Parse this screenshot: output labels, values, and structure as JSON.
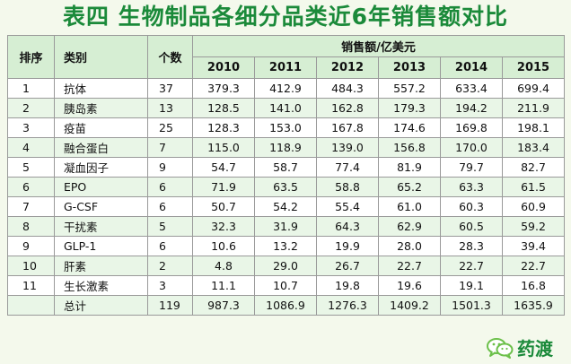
{
  "title": "表四 生物制品各细分品类近6年销售额对比",
  "headers": {
    "rank": "排序",
    "category": "类别",
    "count": "个数",
    "sales": "销售额/亿美元",
    "years": [
      "2010",
      "2011",
      "2012",
      "2013",
      "2014",
      "2015"
    ]
  },
  "rows": [
    {
      "rank": "1",
      "category": "抗体",
      "count": "37",
      "values": [
        "379.3",
        "412.9",
        "484.3",
        "557.2",
        "633.4",
        "699.4"
      ]
    },
    {
      "rank": "2",
      "category": "胰岛素",
      "count": "13",
      "values": [
        "128.5",
        "141.0",
        "162.8",
        "179.3",
        "194.2",
        "211.9"
      ]
    },
    {
      "rank": "3",
      "category": "疫苗",
      "count": "25",
      "values": [
        "128.3",
        "153.0",
        "167.8",
        "174.6",
        "169.8",
        "198.1"
      ]
    },
    {
      "rank": "4",
      "category": "融合蛋白",
      "count": "7",
      "values": [
        "115.0",
        "118.9",
        "139.0",
        "156.8",
        "170.0",
        "183.4"
      ]
    },
    {
      "rank": "5",
      "category": "凝血因子",
      "count": "9",
      "values": [
        "54.7",
        "58.7",
        "77.4",
        "81.9",
        "79.7",
        "82.7"
      ]
    },
    {
      "rank": "6",
      "category": "EPO",
      "count": "6",
      "values": [
        "71.9",
        "63.5",
        "58.8",
        "65.2",
        "63.3",
        "61.5"
      ]
    },
    {
      "rank": "7",
      "category": "G-CSF",
      "count": "6",
      "values": [
        "50.7",
        "54.2",
        "55.4",
        "61.0",
        "60.3",
        "60.9"
      ]
    },
    {
      "rank": "8",
      "category": "干扰素",
      "count": "5",
      "values": [
        "32.3",
        "31.9",
        "64.3",
        "62.9",
        "60.5",
        "59.2"
      ]
    },
    {
      "rank": "9",
      "category": "GLP-1",
      "count": "6",
      "values": [
        "10.6",
        "13.2",
        "19.9",
        "28.0",
        "28.3",
        "39.4"
      ]
    },
    {
      "rank": "10",
      "category": "肝素",
      "count": "2",
      "values": [
        "4.8",
        "29.0",
        "26.7",
        "22.7",
        "22.7",
        "22.7"
      ]
    },
    {
      "rank": "11",
      "category": "生长激素",
      "count": "3",
      "values": [
        "11.1",
        "10.7",
        "19.8",
        "19.6",
        "19.1",
        "16.8"
      ]
    },
    {
      "rank": "",
      "category": "总计",
      "count": "119",
      "values": [
        "987.3",
        "1086.9",
        "1276.3",
        "1409.2",
        "1501.3",
        "1635.9"
      ]
    }
  ],
  "logo": {
    "text": "药渡",
    "icon": "wechat-icon"
  }
}
